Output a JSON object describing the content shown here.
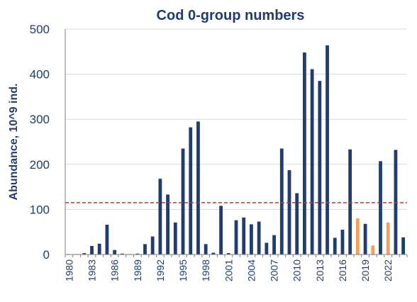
{
  "chart_data": {
    "type": "bar",
    "title": "Cod 0-group numbers",
    "xlabel": "",
    "ylabel": "Abundance,  10^9 ind.",
    "ylim": [
      0,
      500
    ],
    "yticks": [
      0,
      100,
      200,
      300,
      400,
      500
    ],
    "x_tick_labels": [
      "1980",
      "1983",
      "1986",
      "1989",
      "1992",
      "1995",
      "1998",
      "2001",
      "2004",
      "2007",
      "2010",
      "2013",
      "2016",
      "2019",
      "2022"
    ],
    "categories": [
      1980,
      1981,
      1982,
      1983,
      1984,
      1985,
      1986,
      1987,
      1988,
      1989,
      1990,
      1991,
      1992,
      1993,
      1994,
      1995,
      1996,
      1997,
      1998,
      1999,
      2000,
      2001,
      2002,
      2003,
      2004,
      2005,
      2006,
      2007,
      2008,
      2009,
      2010,
      2011,
      2012,
      2013,
      2014,
      2015,
      2016,
      2017,
      2018,
      2019,
      2020,
      2021,
      2022,
      2023,
      2024
    ],
    "values": [
      1,
      1,
      3,
      19,
      24,
      66,
      10,
      2,
      1,
      2,
      23,
      40,
      168,
      133,
      71,
      235,
      282,
      295,
      23,
      4,
      108,
      3,
      76,
      82,
      67,
      73,
      26,
      43,
      235,
      187,
      136,
      448,
      411,
      385,
      464,
      37,
      55,
      233,
      80,
      68,
      20,
      207,
      71,
      232,
      38
    ],
    "highlight_years": [
      2018,
      2020,
      2022
    ],
    "reference_line": {
      "value": 115,
      "style": "dashed"
    },
    "colors": {
      "bar": "#1f3d6e",
      "highlight": "#f5a05a",
      "reference": "#c0392b",
      "text": "#1f3d6e",
      "axis": "#7f7f7f"
    }
  }
}
